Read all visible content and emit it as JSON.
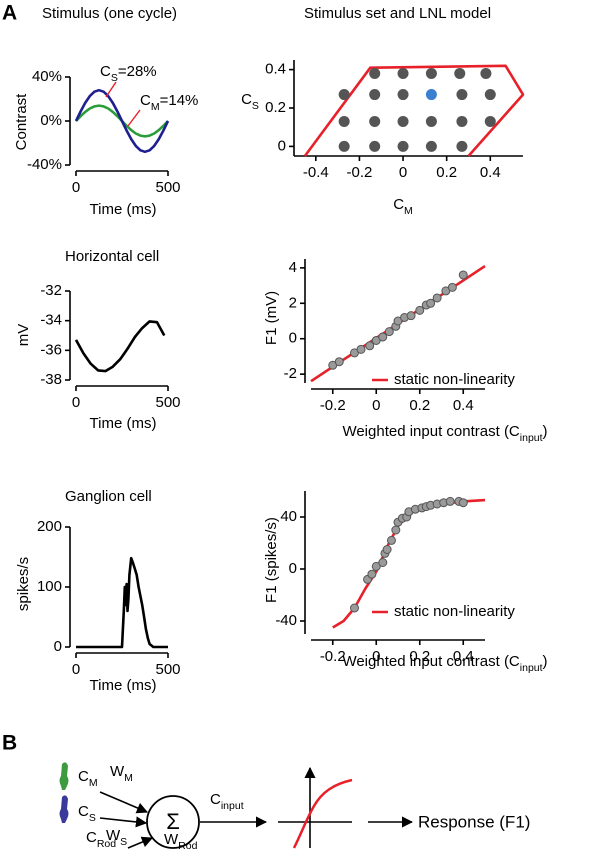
{
  "panel_labels": [
    "A",
    "B"
  ],
  "chart_data": [
    {
      "type": "line",
      "title": "Stimulus (one cycle)",
      "x": [
        0,
        25,
        50,
        75,
        100,
        125,
        150,
        175,
        200,
        225,
        250,
        275,
        300,
        325,
        350,
        375,
        400,
        425,
        450,
        475,
        500
      ],
      "series": [
        {
          "color": "#2a9d3a",
          "values": [
            0,
            4.33,
            8.23,
            11.33,
            13.31,
            14,
            13.31,
            11.33,
            8.23,
            4.33,
            0,
            -4.33,
            -8.23,
            -11.33,
            -13.31,
            -14,
            -13.31,
            -11.33,
            -8.23,
            -4.33,
            0
          ]
        },
        {
          "color": "#1f1f8f",
          "values": [
            0,
            8.65,
            16.46,
            22.65,
            26.63,
            28,
            26.63,
            22.65,
            16.46,
            8.65,
            0,
            -8.65,
            -16.46,
            -22.65,
            -26.63,
            -28,
            -26.63,
            -22.65,
            -16.46,
            -8.65,
            0
          ]
        }
      ],
      "xlim": [
        0,
        500
      ],
      "ylim": [
        -40,
        40
      ],
      "xticks": [
        0,
        500
      ],
      "yticks": [
        {
          "value": 40,
          "label": "40%"
        },
        {
          "value": 0,
          "label": "0%"
        },
        {
          "value": -40,
          "label": "-40%"
        }
      ],
      "xlabel": "Time (ms)",
      "ylabel": "Contrast",
      "annotations": [
        {
          "text": "C",
          "sub": "S",
          "text_end": "=28%"
        },
        {
          "text": "C",
          "sub": "M",
          "text_end": "=14%"
        }
      ]
    },
    {
      "type": "scatter",
      "title": "Stimulus set and LNL model",
      "series": [
        {
          "type": "line",
          "color": "#e8202a",
          "x": [
            -0.45,
            -0.15,
            0.47,
            0.55,
            0.3
          ],
          "values": [
            -0.05,
            0.41,
            0.42,
            0.27,
            -0.05
          ]
        },
        {
          "color": "#555555",
          "x": [
            -0.27,
            -0.13,
            0,
            0.13,
            0.27,
            -0.27,
            -0.13,
            0,
            0.13,
            0.27,
            0.4,
            -0.27,
            -0.13,
            0,
            0.27,
            0.4,
            -0.13,
            0,
            0.13,
            0.26,
            0.38
          ],
          "values": [
            0,
            0,
            0,
            0,
            0,
            0.13,
            0.13,
            0.13,
            0.13,
            0.13,
            0.13,
            0.27,
            0.27,
            0.27,
            0.27,
            0.27,
            0.38,
            0.38,
            0.38,
            0.38,
            0.38
          ]
        },
        {
          "color": "#3a7fd0",
          "x": [
            0.13
          ],
          "values": [
            0.27
          ]
        }
      ],
      "xlim": [
        -0.5,
        0.55
      ],
      "ylim": [
        -0.05,
        0.45
      ],
      "xticks": [
        -0.4,
        -0.2,
        0,
        0.2,
        0.4
      ],
      "yticks": [
        0,
        0.2,
        0.4
      ],
      "xlabel": "C",
      "xlabel_sub": "M",
      "ylabel": "C",
      "ylabel_sub": "S"
    },
    {
      "type": "line",
      "title": "Horizontal cell",
      "x": [
        0,
        40,
        80,
        120,
        160,
        200,
        240,
        280,
        320,
        360,
        400,
        440,
        480
      ],
      "series": [
        {
          "color": "#000000",
          "values": [
            -35.3,
            -36.2,
            -36.9,
            -37.35,
            -37.4,
            -37.1,
            -36.6,
            -35.9,
            -35.1,
            -34.5,
            -34.05,
            -34.1,
            -35.0
          ]
        }
      ],
      "xlim": [
        0,
        500
      ],
      "ylim": [
        -38,
        -32
      ],
      "xticks": [
        0,
        500
      ],
      "yticks": [
        -38,
        -36,
        -34,
        -32
      ],
      "xlabel": "Time (ms)",
      "ylabel": "mV"
    },
    {
      "type": "scatter",
      "series": [
        {
          "type": "line",
          "name": "static non-linearity",
          "color": "#e8202a",
          "x": [
            -0.3,
            0.5
          ],
          "values": [
            -2.4,
            4.1
          ]
        },
        {
          "color": "#9a9a9a",
          "edgecolor": "#555555",
          "x": [
            -0.2,
            -0.17,
            -0.1,
            -0.07,
            -0.03,
            0,
            0.03,
            0.06,
            0.09,
            0.1,
            0.13,
            0.16,
            0.2,
            0.23,
            0.25,
            0.28,
            0.32,
            0.35,
            0.4
          ],
          "values": [
            -1.5,
            -1.3,
            -0.8,
            -0.6,
            -0.4,
            -0.1,
            0.1,
            0.4,
            0.7,
            1.0,
            1.2,
            1.3,
            1.6,
            1.9,
            2.0,
            2.3,
            2.7,
            2.9,
            3.6
          ]
        }
      ],
      "xlim": [
        -0.3,
        0.5
      ],
      "ylim": [
        -2.5,
        4.5
      ],
      "xticks": [
        -0.2,
        0,
        0.2,
        0.4
      ],
      "yticks": [
        -2,
        0,
        2,
        4
      ],
      "xlabel": "Weighted input contrast (C",
      "xlabel_sub": "input",
      "xlabel_end": ")",
      "ylabel": "F1 (mV)"
    },
    {
      "type": "line",
      "title": "Ganglion cell",
      "x": [
        0,
        220,
        250,
        260,
        265,
        270,
        275,
        280,
        285,
        290,
        300,
        310,
        320,
        330,
        340,
        350,
        360,
        370,
        380,
        390,
        400,
        420,
        450,
        500
      ],
      "series": [
        {
          "color": "#000000",
          "values": [
            0,
            0,
            0,
            60,
            100,
            70,
            105,
            60,
            80,
            120,
            148,
            140,
            130,
            120,
            100,
            85,
            70,
            50,
            30,
            15,
            5,
            0,
            0,
            0
          ]
        }
      ],
      "xlim": [
        0,
        500
      ],
      "ylim": [
        0,
        200
      ],
      "xticks": [
        0,
        500
      ],
      "yticks": [
        0,
        100,
        200
      ],
      "xlabel": "Time (ms)",
      "ylabel": "spikes/s"
    },
    {
      "type": "scatter",
      "series": [
        {
          "type": "line",
          "name": "static non-linearity",
          "color": "#e8202a",
          "x": [
            -0.2,
            -0.15,
            -0.1,
            -0.05,
            0,
            0.05,
            0.1,
            0.15,
            0.2,
            0.3,
            0.4,
            0.5
          ],
          "values": [
            -45,
            -40,
            -30,
            -15,
            -2,
            17,
            33,
            42,
            47,
            50,
            52,
            53
          ]
        },
        {
          "color": "#9a9a9a",
          "edgecolor": "#555555",
          "x": [
            -0.1,
            -0.04,
            -0.02,
            0,
            0.03,
            0.04,
            0.05,
            0.07,
            0.09,
            0.1,
            0.12,
            0.14,
            0.15,
            0.18,
            0.21,
            0.23,
            0.25,
            0.28,
            0.31,
            0.34,
            0.38,
            0.4
          ],
          "values": [
            -30,
            -8,
            -4,
            2,
            5,
            12,
            15,
            22,
            30,
            36,
            39,
            40,
            44,
            46,
            47,
            48,
            49,
            50,
            51,
            52,
            52,
            51
          ]
        }
      ],
      "xlim": [
        -0.3,
        0.5
      ],
      "ylim": [
        -50,
        60
      ],
      "xticks": [
        -0.2,
        0,
        0.2,
        0.4
      ],
      "yticks": [
        -40,
        0,
        40
      ],
      "xlabel": "Weighted input contrast (C",
      "xlabel_sub": "input",
      "xlabel_end": ")",
      "ylabel": "F1 (spikes/s)"
    }
  ],
  "diagram": {
    "inputs": [
      {
        "label": "C",
        "sub": "M"
      },
      {
        "label": "C",
        "sub": "S"
      },
      {
        "label": "C",
        "sub": "Rod"
      }
    ],
    "weights": [
      {
        "label": "W",
        "sub": "M"
      },
      {
        "label": "W",
        "sub": "S"
      },
      {
        "label": "W",
        "sub": "Rod"
      }
    ],
    "sum": "Σ",
    "output": {
      "label": "C",
      "sub": "input"
    },
    "response": "Response (F1)"
  }
}
